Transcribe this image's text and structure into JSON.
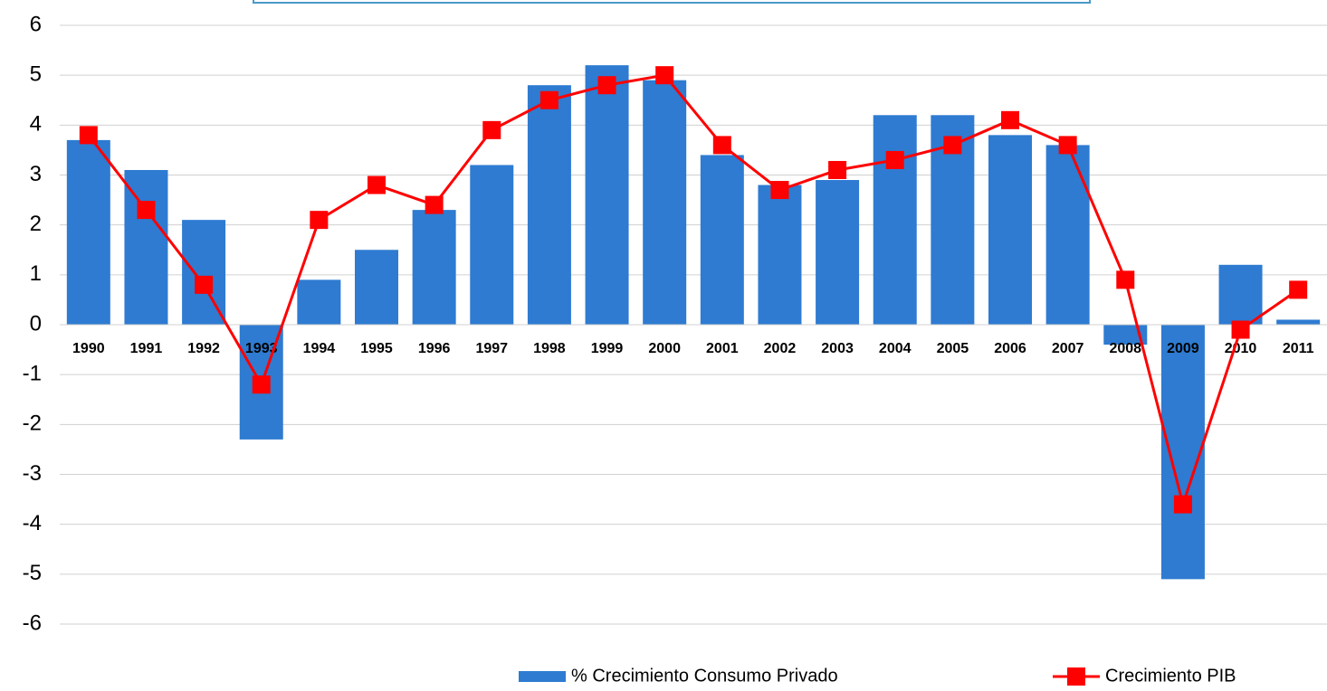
{
  "chart_data": {
    "type": "bar_line",
    "categories": [
      "1990",
      "1991",
      "1992",
      "1993",
      "1994",
      "1995",
      "1996",
      "1997",
      "1998",
      "1999",
      "2000",
      "2001",
      "2002",
      "2003",
      "2004",
      "2005",
      "2006",
      "2007",
      "2008",
      "2009",
      "2010",
      "2011"
    ],
    "series": [
      {
        "name": "% Crecimiento Consumo Privado",
        "type": "bar",
        "color": "#2e7bd1",
        "values": [
          3.7,
          3.1,
          2.1,
          -2.3,
          0.9,
          1.5,
          2.3,
          3.2,
          4.8,
          5.2,
          4.9,
          3.4,
          2.8,
          2.9,
          4.2,
          4.2,
          3.8,
          3.6,
          -0.4,
          -5.1,
          1.2,
          0.1
        ]
      },
      {
        "name": "Crecimiento PIB",
        "type": "line",
        "color": "#ff0000",
        "values": [
          3.8,
          2.3,
          0.8,
          -1.2,
          2.1,
          2.8,
          2.4,
          3.9,
          4.5,
          4.8,
          5.0,
          3.6,
          2.7,
          3.1,
          3.3,
          3.6,
          4.1,
          3.6,
          0.9,
          -3.6,
          -0.1,
          0.7
        ]
      }
    ],
    "ylim": [
      -6,
      6
    ],
    "yticks": [
      -6,
      -5,
      -4,
      -3,
      -2,
      -1,
      0,
      1,
      2,
      3,
      4,
      5,
      6
    ],
    "grid": true,
    "legend": "bottom"
  }
}
